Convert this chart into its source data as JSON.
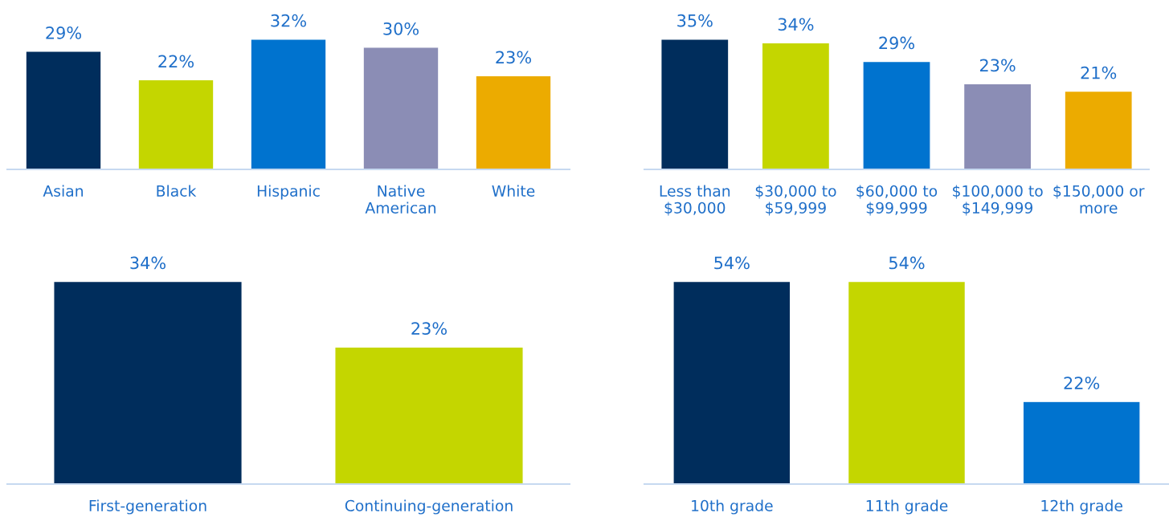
{
  "chart_data": [
    {
      "type": "bar",
      "categories": [
        "Asian",
        "Black",
        "Hispanic",
        "Native\nAmerican",
        "White"
      ],
      "values": [
        29,
        22,
        32,
        30,
        23
      ],
      "colors": [
        "#002d5c",
        "#c4d600",
        "#0073cf",
        "#8b8db5",
        "#ecab00"
      ],
      "value_labels": [
        "29%",
        "22%",
        "32%",
        "30%",
        "23%"
      ],
      "grid": false,
      "legend": false
    },
    {
      "type": "bar",
      "categories": [
        "Less than\n$30,000",
        "$30,000 to\n$59,999",
        "$60,000 to\n$99,999",
        "$100,000 to\n$149,999",
        "$150,000 or\nmore"
      ],
      "values": [
        35,
        34,
        29,
        23,
        21
      ],
      "colors": [
        "#002d5c",
        "#c4d600",
        "#0073cf",
        "#8b8db5",
        "#ecab00"
      ],
      "value_labels": [
        "35%",
        "34%",
        "29%",
        "23%",
        "21%"
      ],
      "grid": false,
      "legend": false
    },
    {
      "type": "bar",
      "categories": [
        "First-generation",
        "Continuing-generation"
      ],
      "values": [
        34,
        23
      ],
      "colors": [
        "#002d5c",
        "#c4d600"
      ],
      "value_labels": [
        "34%",
        "23%"
      ],
      "grid": false,
      "legend": false
    },
    {
      "type": "bar",
      "categories": [
        "10th grade",
        "11th grade",
        "12th grade"
      ],
      "values": [
        54,
        54,
        22
      ],
      "colors": [
        "#002d5c",
        "#c4d600",
        "#0073cf"
      ],
      "value_labels": [
        "54%",
        "54%",
        "22%"
      ],
      "grid": false,
      "legend": false
    }
  ]
}
